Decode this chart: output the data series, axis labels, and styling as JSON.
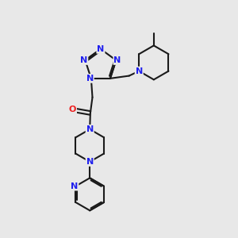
{
  "bg_color": "#e8e8e8",
  "bond_color": "#1a1a1a",
  "N_color": "#2020ee",
  "O_color": "#ee2020",
  "figsize": [
    3.0,
    3.0
  ],
  "dpi": 100,
  "xlim": [
    0.5,
    8.5
  ],
  "ylim": [
    0.5,
    9.5
  ]
}
